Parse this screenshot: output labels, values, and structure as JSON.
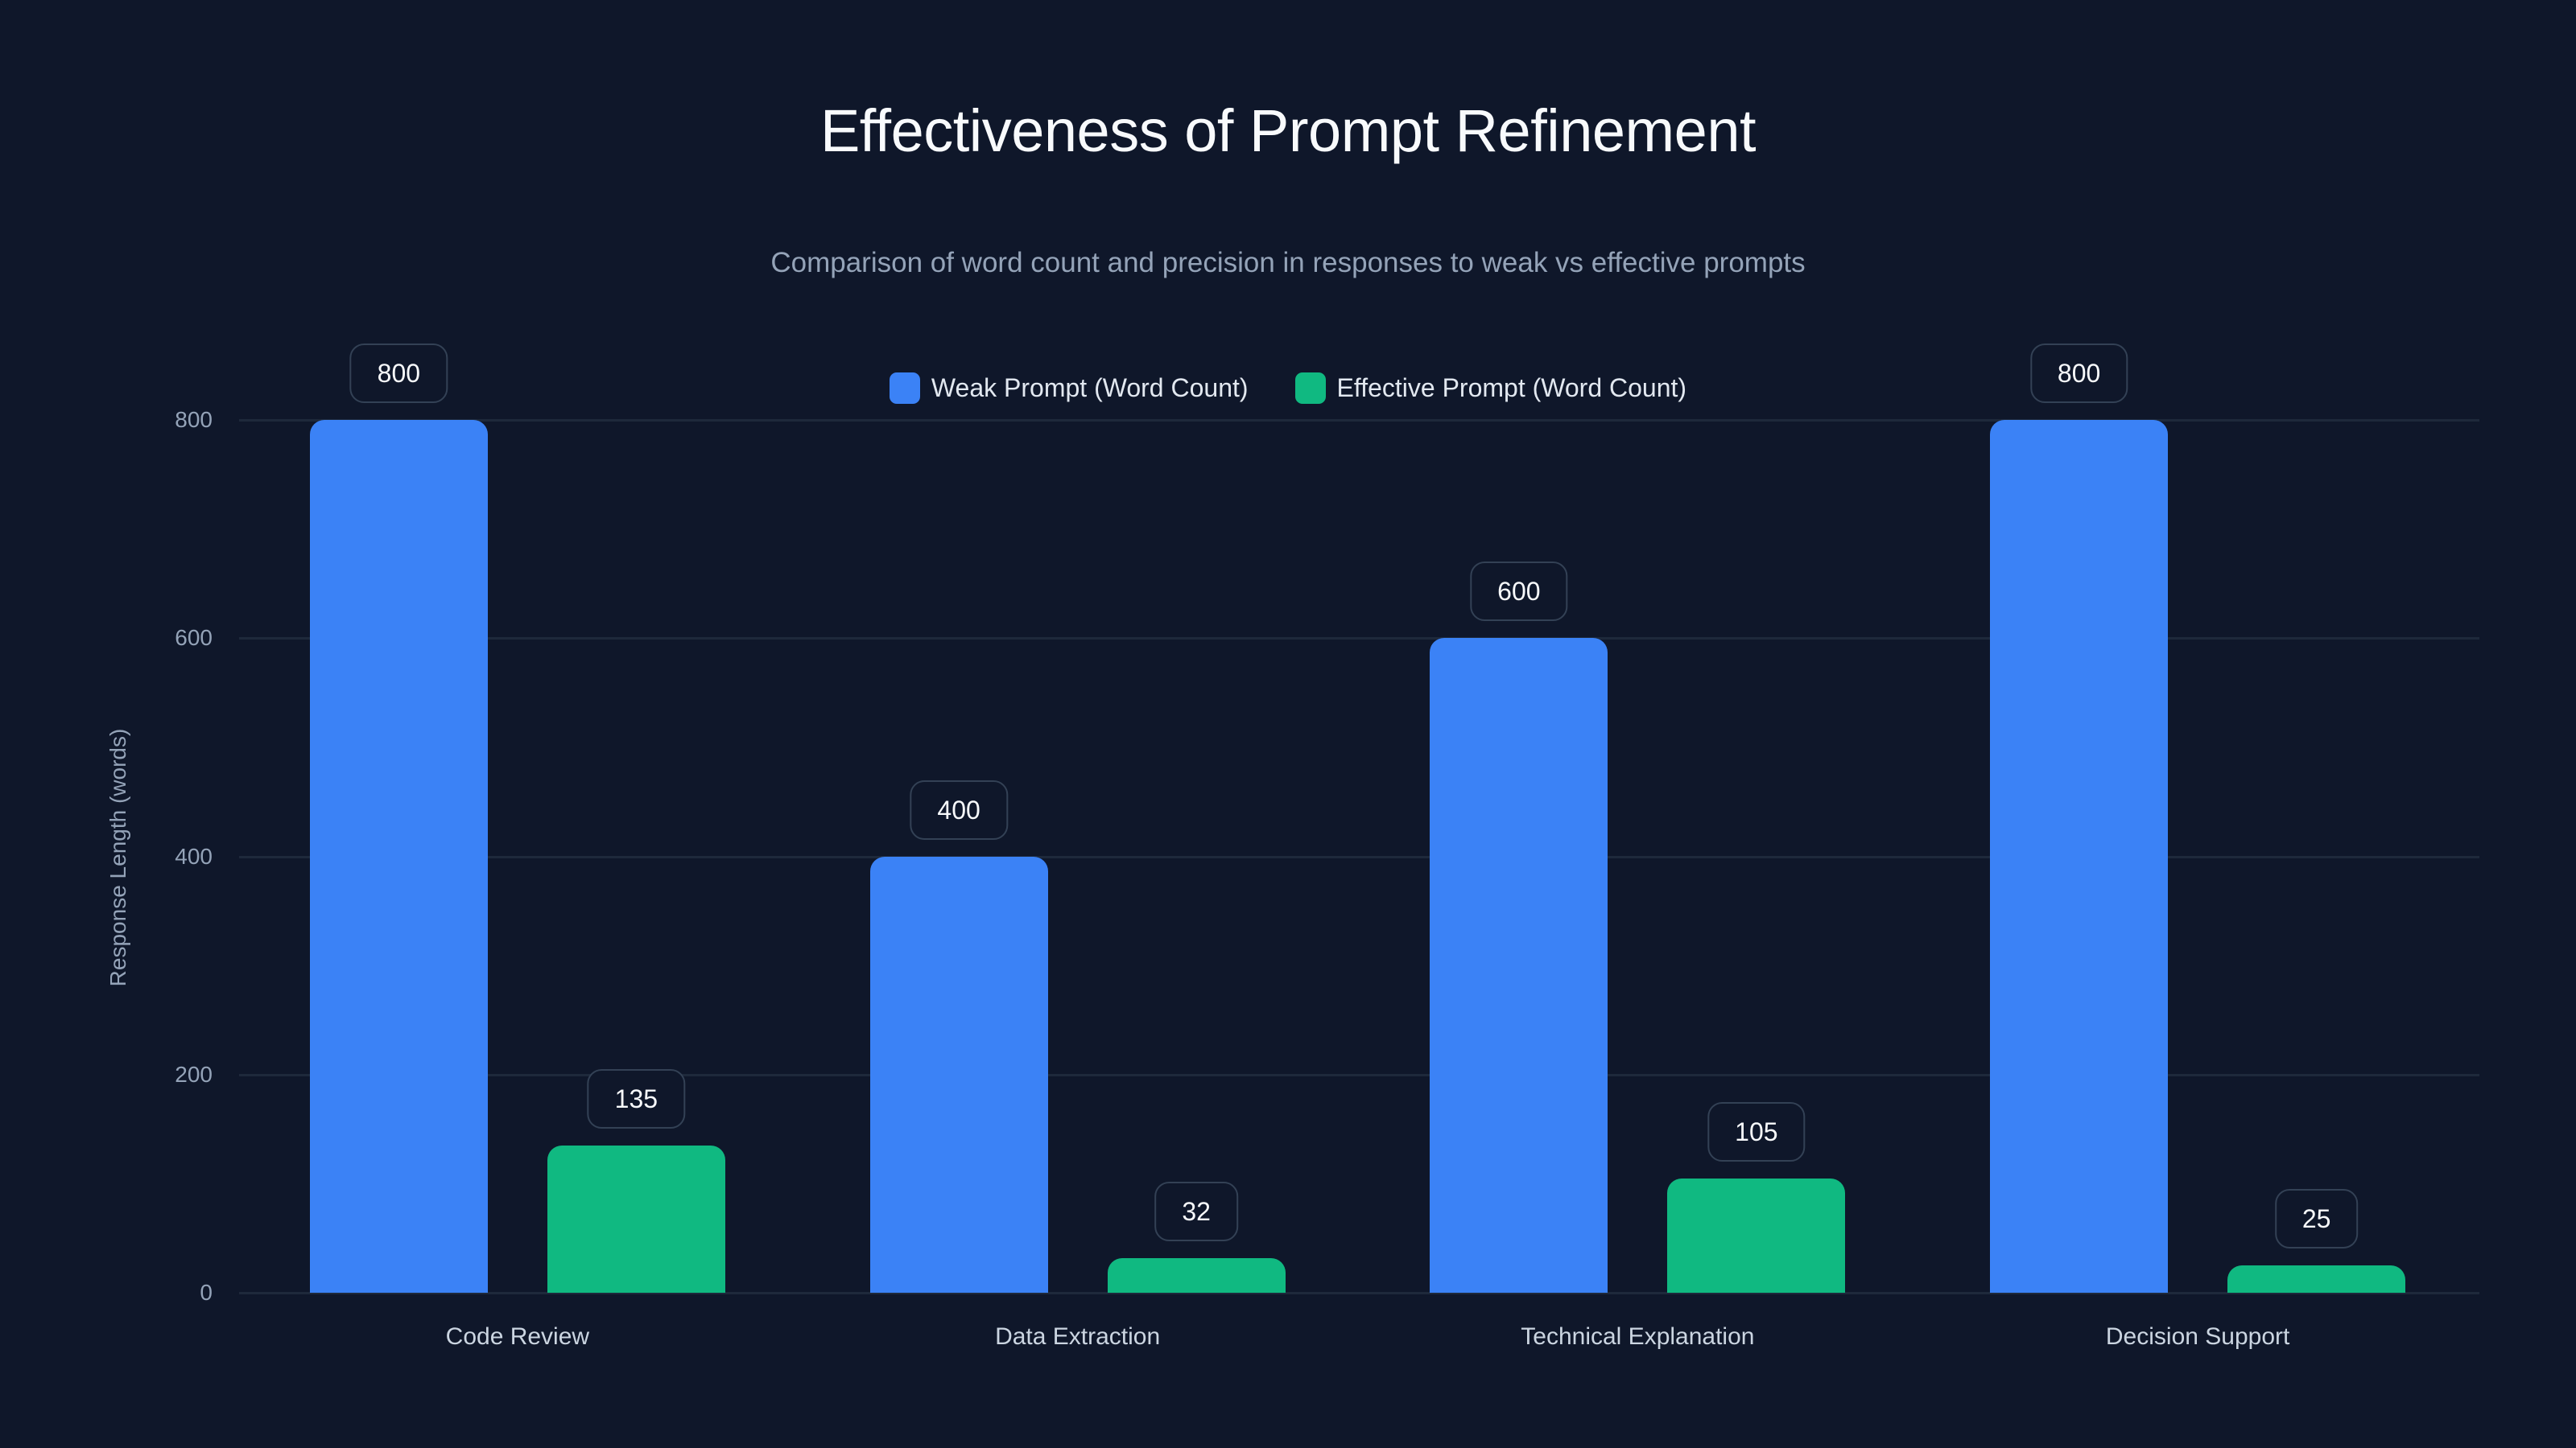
{
  "title": "Effectiveness of Prompt Refinement",
  "subtitle": "Comparison of word count and precision in responses to weak vs effective prompts",
  "legend": [
    {
      "label": "Weak Prompt (Word Count)",
      "color": "#3b82f6"
    },
    {
      "label": "Effective Prompt (Word Count)",
      "color": "#10b981"
    }
  ],
  "y_axis": {
    "label": "Response Length (words)",
    "ticks": [
      "0",
      "200",
      "400",
      "600",
      "800"
    ]
  },
  "chart_data": {
    "type": "bar",
    "title": "Effectiveness of Prompt Refinement",
    "subtitle": "Comparison of word count and precision in responses to weak vs effective prompts",
    "categories": [
      "Code Review",
      "Data Extraction",
      "Technical Explanation",
      "Decision Support"
    ],
    "series": [
      {
        "name": "Weak Prompt (Word Count)",
        "color": "#3b82f6",
        "values": [
          800,
          400,
          600,
          800
        ]
      },
      {
        "name": "Effective Prompt (Word Count)",
        "color": "#10b981",
        "values": [
          135,
          32,
          105,
          25
        ]
      }
    ],
    "xlabel": "",
    "ylabel": "Response Length (words)",
    "ylim": [
      0,
      800
    ],
    "yticks": [
      0,
      200,
      400,
      600,
      800
    ],
    "grid": true,
    "legend_position": "top-center",
    "data_labels": true
  },
  "colors": {
    "background": "#0f172a",
    "grid": "#1e293b",
    "weak": "#3b82f6",
    "effective": "#10b981"
  }
}
